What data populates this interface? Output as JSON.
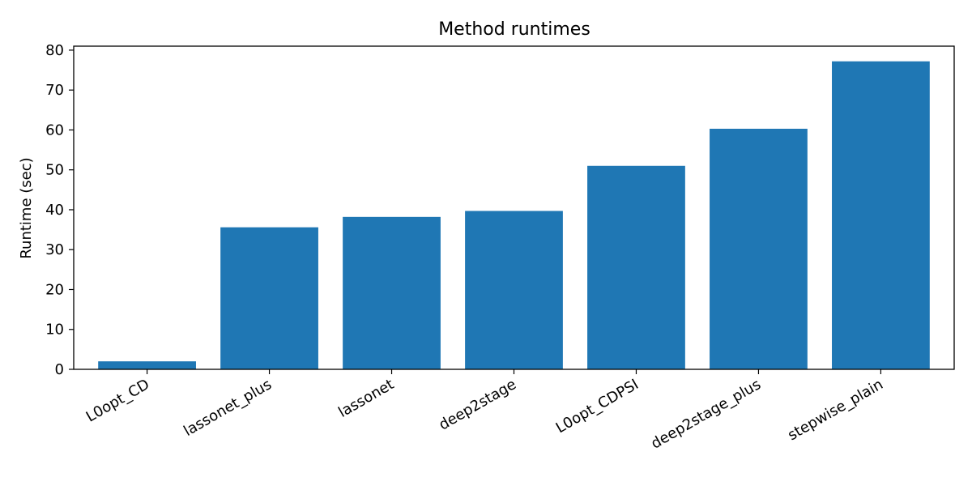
{
  "chart_data": {
    "type": "bar",
    "title": "Method runtimes",
    "xlabel": "",
    "ylabel": "Runtime (sec)",
    "categories": [
      "L0opt_CD",
      "lassonet_plus",
      "lassonet",
      "deep2stage",
      "L0opt_CDPSI",
      "deep2stage_plus",
      "stepwise_plain"
    ],
    "values": [
      2.0,
      35.6,
      38.2,
      39.7,
      51.0,
      60.3,
      77.2
    ],
    "ylim": [
      0,
      81
    ],
    "yticks": [
      0,
      10,
      20,
      30,
      40,
      50,
      60,
      70,
      80
    ],
    "grid": false,
    "bar_color": "#1f77b4"
  }
}
